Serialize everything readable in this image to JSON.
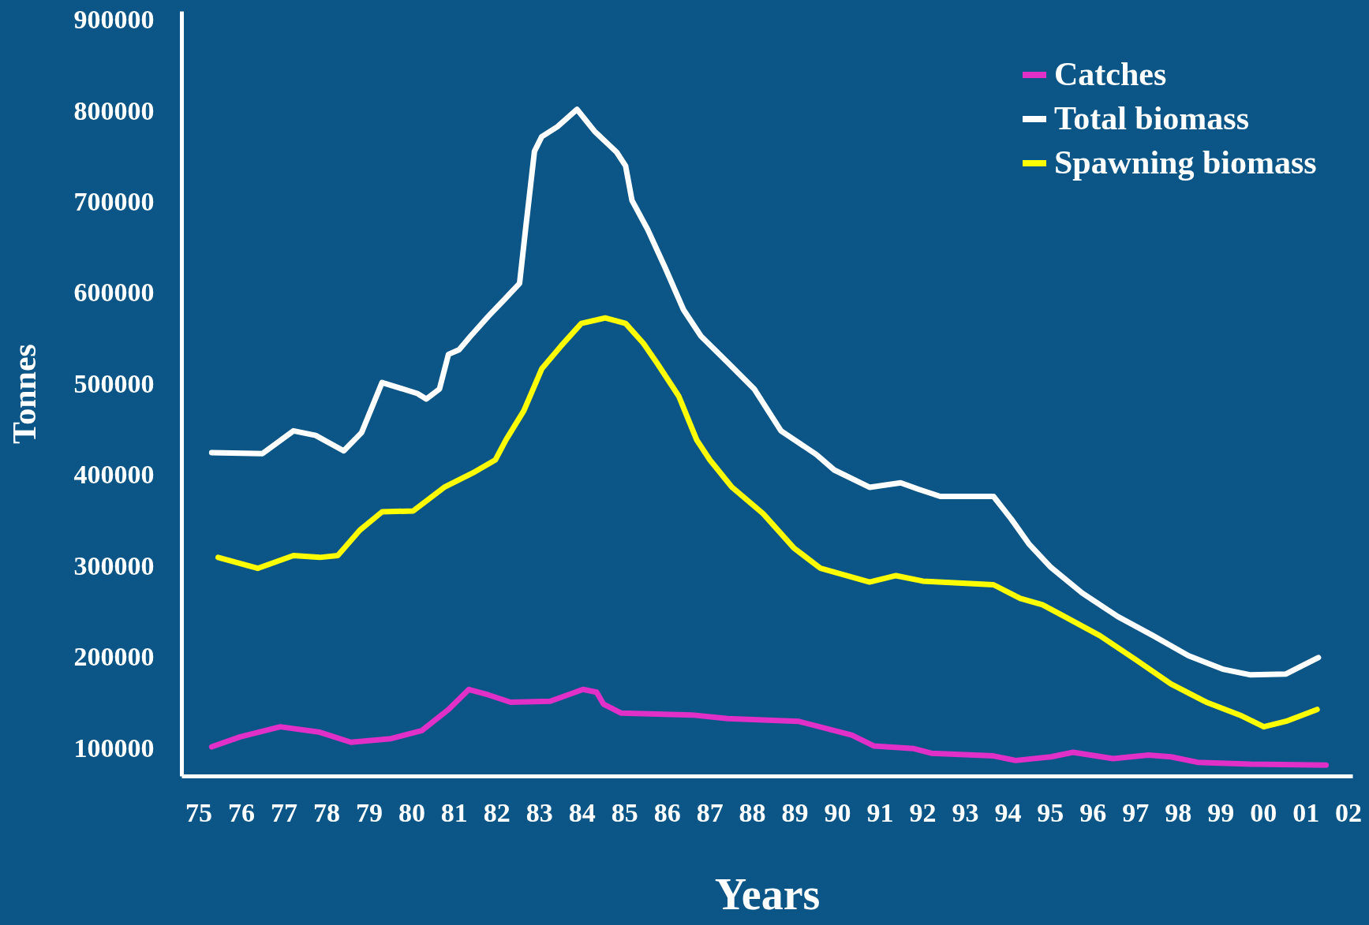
{
  "chart_data": {
    "type": "line",
    "xlabel": "Years",
    "ylabel": "Tonnes",
    "xlim": [
      1974.6,
      2002.1
    ],
    "xticks": [
      {
        "value": 1975,
        "label": "75"
      },
      {
        "value": 1976,
        "label": "76"
      },
      {
        "value": 1977,
        "label": "77"
      },
      {
        "value": 1978,
        "label": "78"
      },
      {
        "value": 1979,
        "label": "79"
      },
      {
        "value": 1980,
        "label": "80"
      },
      {
        "value": 1981,
        "label": "81"
      },
      {
        "value": 1982,
        "label": "82"
      },
      {
        "value": 1983,
        "label": "83"
      },
      {
        "value": 1984,
        "label": "84"
      },
      {
        "value": 1985,
        "label": "85"
      },
      {
        "value": 1986,
        "label": "86"
      },
      {
        "value": 1987,
        "label": "87"
      },
      {
        "value": 1988,
        "label": "88"
      },
      {
        "value": 1989,
        "label": "89"
      },
      {
        "value": 1990,
        "label": "90"
      },
      {
        "value": 1991,
        "label": "91"
      },
      {
        "value": 1992,
        "label": "92"
      },
      {
        "value": 1993,
        "label": "93"
      },
      {
        "value": 1994,
        "label": "94"
      },
      {
        "value": 1995,
        "label": "95"
      },
      {
        "value": 1996,
        "label": "96"
      },
      {
        "value": 1997,
        "label": "97"
      },
      {
        "value": 1998,
        "label": "98"
      },
      {
        "value": 1999,
        "label": "99"
      },
      {
        "value": 2000,
        "label": "00"
      },
      {
        "value": 2001,
        "label": "01"
      },
      {
        "value": 2002,
        "label": "02"
      }
    ],
    "ylim": [
      70000,
      910000
    ],
    "yticks": [
      100000,
      200000,
      300000,
      400000,
      500000,
      600000,
      700000,
      800000,
      900000
    ],
    "grid": false,
    "legend": "top right",
    "series": [
      {
        "name": "Catches",
        "color": "#e030c8",
        "x": [
          1975.31,
          1975.98,
          1976.92,
          1977.85,
          1978.58,
          1979.52,
          1980.25,
          1980.87,
          1981.35,
          1981.81,
          1982.33,
          1983.26,
          1984.03,
          1984.35,
          1984.51,
          1984.93,
          1986.59,
          1987.43,
          1989.09,
          1990.34,
          1990.86,
          1991.8,
          1992.21,
          1993.67,
          1994.19,
          1995.02,
          1995.54,
          1996.48,
          1997.31,
          1997.84,
          1998.46,
          1999.71,
          2001.48
        ],
        "values": [
          102000,
          113000,
          124000,
          118000,
          107000,
          111000,
          120000,
          143000,
          165000,
          159000,
          151000,
          152000,
          165000,
          162000,
          149000,
          139000,
          137000,
          133000,
          130000,
          115000,
          103000,
          100000,
          95000,
          92000,
          87000,
          91000,
          96000,
          89000,
          93000,
          91000,
          85000,
          83000,
          82000
        ]
      },
      {
        "name": "Total biomass",
        "color": "#ffffff",
        "x": [
          1975.31,
          1976.5,
          1977.23,
          1977.75,
          1978.41,
          1978.83,
          1979.31,
          1979.73,
          1980.14,
          1980.35,
          1980.66,
          1980.87,
          1981.12,
          1981.39,
          1981.81,
          1982.22,
          1982.54,
          1982.68,
          1982.89,
          1983.06,
          1983.43,
          1983.89,
          1984.3,
          1984.82,
          1985.03,
          1985.18,
          1985.55,
          1985.97,
          1986.39,
          1986.8,
          1987.43,
          1988.05,
          1988.68,
          1989.51,
          1989.93,
          1990.76,
          1991.49,
          1991.9,
          1992.42,
          1993.67,
          1994.09,
          1994.5,
          1995.02,
          1995.75,
          1996.59,
          1997.42,
          1998.25,
          1999.08,
          1999.71,
          2000.54,
          2000.96,
          2001.3
        ],
        "values": [
          425000,
          424000,
          449000,
          444000,
          427000,
          447000,
          502000,
          496000,
          490000,
          484000,
          495000,
          533000,
          538000,
          553000,
          575000,
          595000,
          611000,
          670000,
          756000,
          772000,
          783000,
          802000,
          778000,
          755000,
          740000,
          702000,
          670000,
          627000,
          582000,
          553000,
          524000,
          495000,
          449000,
          423000,
          406000,
          387000,
          392000,
          385000,
          377000,
          377000,
          352000,
          325000,
          299000,
          271000,
          245000,
          224000,
          202000,
          187000,
          181000,
          182000,
          192000,
          200000
        ]
      },
      {
        "name": "Spawning biomass",
        "color": "#ffff00",
        "x": [
          1975.46,
          1976.39,
          1977.23,
          1977.85,
          1978.27,
          1978.79,
          1979.31,
          1980.04,
          1980.77,
          1981.49,
          1981.97,
          1982.22,
          1982.64,
          1983.06,
          1983.51,
          1983.99,
          1984.55,
          1985.03,
          1985.45,
          1985.76,
          1986.28,
          1986.7,
          1987.01,
          1987.53,
          1988.26,
          1988.99,
          1989.61,
          1990.76,
          1991.38,
          1992.01,
          1992.84,
          1993.67,
          1994.3,
          1994.82,
          1995.34,
          1996.17,
          1997.0,
          1997.84,
          1998.67,
          1999.5,
          2000.02,
          2000.54,
          2001.27
        ],
        "values": [
          310000,
          298000,
          312000,
          310000,
          312000,
          340000,
          360000,
          361000,
          387000,
          404000,
          417000,
          439000,
          471000,
          517000,
          542000,
          567000,
          573000,
          567000,
          545000,
          524000,
          487000,
          439000,
          417000,
          387000,
          358000,
          320000,
          298000,
          283000,
          290000,
          284000,
          282000,
          280000,
          265000,
          258000,
          245000,
          224000,
          198000,
          171000,
          151000,
          136000,
          124000,
          130000,
          143000
        ]
      }
    ]
  }
}
